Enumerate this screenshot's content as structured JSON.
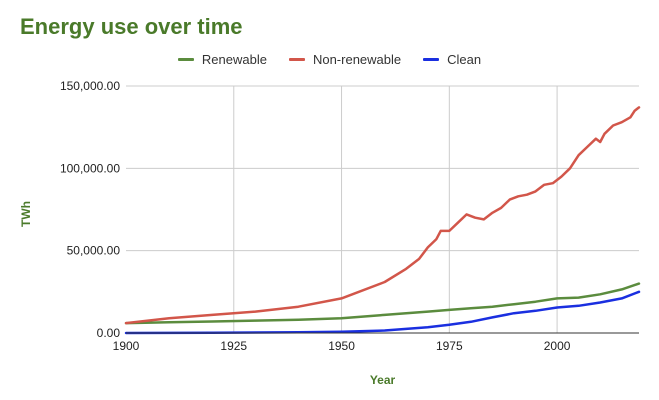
{
  "chart_data": {
    "type": "line",
    "title": "Energy use over time",
    "xlabel": "Year",
    "ylabel": "TWh",
    "xlim": [
      1900,
      2019
    ],
    "ylim": [
      0,
      150000
    ],
    "x_ticks": [
      1900,
      1925,
      1950,
      1975,
      2000
    ],
    "x_tick_labels": [
      "1900",
      "1925",
      "1950",
      "1975",
      "2000"
    ],
    "y_ticks": [
      0,
      50000,
      100000,
      150000
    ],
    "y_tick_labels": [
      "0.00",
      "50,000.00",
      "100,000.00",
      "150,000.00"
    ],
    "grid": true,
    "legend_position": "top",
    "series": [
      {
        "name": "Renewable",
        "color": "#5b8c3e",
        "points": [
          [
            1900,
            6000
          ],
          [
            1910,
            6500
          ],
          [
            1920,
            7000
          ],
          [
            1930,
            7500
          ],
          [
            1940,
            8000
          ],
          [
            1950,
            9000
          ],
          [
            1960,
            11000
          ],
          [
            1965,
            12000
          ],
          [
            1970,
            13000
          ],
          [
            1975,
            14000
          ],
          [
            1980,
            15000
          ],
          [
            1985,
            16000
          ],
          [
            1990,
            17500
          ],
          [
            1995,
            19000
          ],
          [
            2000,
            21000
          ],
          [
            2005,
            21500
          ],
          [
            2010,
            23500
          ],
          [
            2015,
            26500
          ],
          [
            2019,
            30000
          ]
        ]
      },
      {
        "name": "Non-renewable",
        "color": "#d2564a",
        "points": [
          [
            1900,
            6000
          ],
          [
            1910,
            9000
          ],
          [
            1920,
            11000
          ],
          [
            1930,
            13000
          ],
          [
            1940,
            16000
          ],
          [
            1950,
            21000
          ],
          [
            1960,
            31000
          ],
          [
            1965,
            39000
          ],
          [
            1968,
            45000
          ],
          [
            1970,
            52000
          ],
          [
            1972,
            57000
          ],
          [
            1973,
            62000
          ],
          [
            1975,
            62000
          ],
          [
            1977,
            67000
          ],
          [
            1979,
            72000
          ],
          [
            1981,
            70000
          ],
          [
            1983,
            69000
          ],
          [
            1985,
            73000
          ],
          [
            1987,
            76000
          ],
          [
            1989,
            81000
          ],
          [
            1991,
            83000
          ],
          [
            1993,
            84000
          ],
          [
            1995,
            86000
          ],
          [
            1997,
            90000
          ],
          [
            1999,
            91000
          ],
          [
            2001,
            95000
          ],
          [
            2003,
            100000
          ],
          [
            2005,
            108000
          ],
          [
            2007,
            113000
          ],
          [
            2009,
            118000
          ],
          [
            2010,
            116000
          ],
          [
            2011,
            121000
          ],
          [
            2013,
            126000
          ],
          [
            2015,
            128000
          ],
          [
            2017,
            131000
          ],
          [
            2018,
            135000
          ],
          [
            2019,
            137000
          ]
        ]
      },
      {
        "name": "Clean",
        "color": "#1a2fe0",
        "points": [
          [
            1900,
            0
          ],
          [
            1920,
            200
          ],
          [
            1940,
            400
          ],
          [
            1950,
            800
          ],
          [
            1960,
            1500
          ],
          [
            1965,
            2500
          ],
          [
            1970,
            3500
          ],
          [
            1975,
            5000
          ],
          [
            1980,
            6800
          ],
          [
            1985,
            9500
          ],
          [
            1990,
            12000
          ],
          [
            1995,
            13500
          ],
          [
            2000,
            15500
          ],
          [
            2005,
            16500
          ],
          [
            2010,
            18500
          ],
          [
            2015,
            21000
          ],
          [
            2019,
            25000
          ]
        ]
      }
    ]
  }
}
